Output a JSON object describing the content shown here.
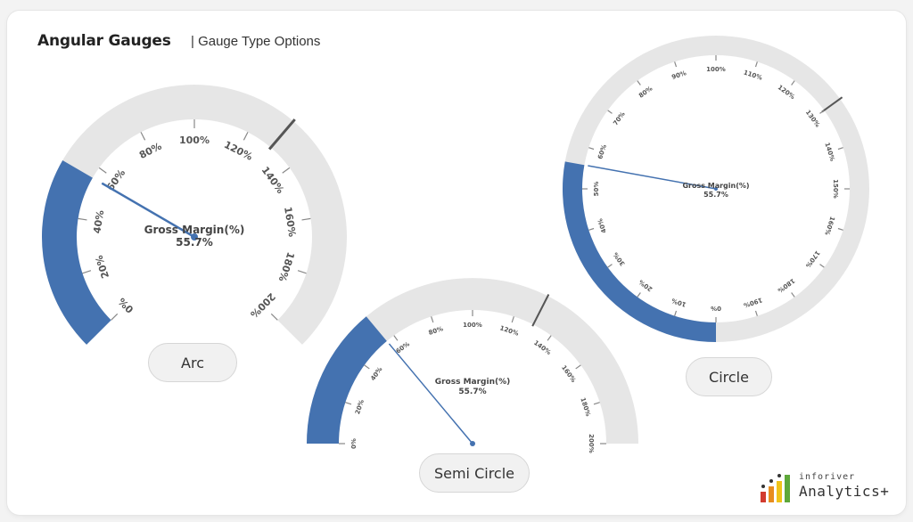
{
  "header": {
    "title": "Angular Gauges",
    "subtitle": "| Gauge Type Options"
  },
  "colors": {
    "fill": "#4472b0",
    "track": "#e6e6e6",
    "needle": "#4472b0",
    "target": "#555555"
  },
  "chart_data": [
    {
      "type": "gauge",
      "style": "arc",
      "label": "Gross Margin(%)",
      "value_label": "55.7%",
      "value": 55.7,
      "min": 0,
      "max": 200,
      "target": 130,
      "ticks": [
        "0%",
        "20%",
        "40%",
        "60%",
        "80%",
        "100%",
        "120%",
        "140%",
        "160%",
        "180%",
        "200%"
      ]
    },
    {
      "type": "gauge",
      "style": "semi-circle",
      "label": "Gross Margin(%)",
      "value_label": "55.7%",
      "value": 55.7,
      "min": 0,
      "max": 200,
      "target": 130,
      "ticks": [
        "0%",
        "20%",
        "40%",
        "60%",
        "80%",
        "100%",
        "120%",
        "140%",
        "160%",
        "180%",
        "200%"
      ]
    },
    {
      "type": "gauge",
      "style": "circle",
      "label": "Gross Margin(%)",
      "value_label": "55.7%",
      "value": 55.7,
      "min": 0,
      "max": 200,
      "target": 130,
      "ticks": [
        "0%",
        "10%",
        "20%",
        "30%",
        "40%",
        "50%",
        "60%",
        "70%",
        "80%",
        "90%",
        "100%",
        "110%",
        "120%",
        "130%",
        "140%",
        "150%",
        "160%",
        "170%",
        "180%",
        "190%"
      ]
    }
  ],
  "buttons": {
    "arc": "Arc",
    "semi": "Semi Circle",
    "circle": "Circle"
  },
  "logo": {
    "top": "inforiver",
    "name": "Analytics+"
  }
}
